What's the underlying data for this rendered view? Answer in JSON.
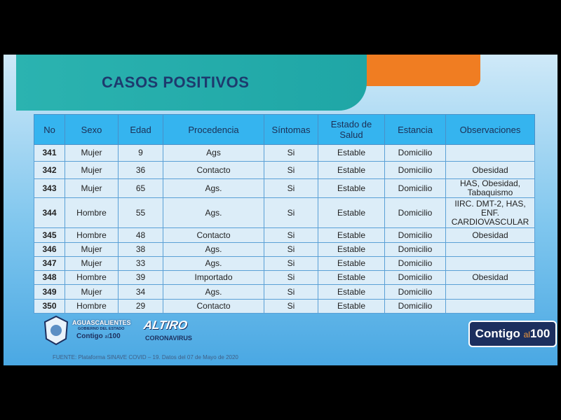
{
  "title": "CASOS POSITIVOS",
  "table": {
    "header": [
      "No",
      "Sexo",
      "Edad",
      "Procedencia",
      "Síntomas",
      "Estado de Salud",
      "Estancia",
      "Observaciones"
    ],
    "rows": [
      [
        "341",
        "Mujer",
        "9",
        "Ags",
        "Si",
        "Estable",
        "Domicilio",
        null
      ],
      [
        "342",
        "Mujer",
        "36",
        "Contacto",
        "Si",
        "Estable",
        "Domicilio",
        "Obesidad"
      ],
      [
        "343",
        "Mujer",
        "65",
        "Ags.",
        "Si",
        "Estable",
        "Domicilio",
        "HAS, Obesidad, Tabaquismo"
      ],
      [
        "344",
        "Hombre",
        "55",
        "Ags.",
        "Si",
        "Estable",
        "Domicilio",
        "IIRC. DMT-2, HAS, ENF. CARDIOVASCULAR"
      ],
      [
        "345",
        "Hombre",
        "48",
        "Contacto",
        "Si",
        "Estable",
        "Domicilio",
        "Obesidad"
      ],
      [
        "346",
        "Mujer",
        "38",
        "Ags.",
        "Si",
        "Estable",
        "Domicilio",
        null
      ],
      [
        "347",
        "Mujer",
        "33",
        "Ags.",
        "Si",
        "Estable",
        "Domicilio",
        null
      ],
      [
        "348",
        "Hombre",
        "39",
        "Importado",
        "Si",
        "Estable",
        "Domicilio",
        "Obesidad"
      ],
      [
        "349",
        "Mujer",
        "34",
        "Ags.",
        "Si",
        "Estable",
        "Domicilio",
        null
      ],
      [
        "350",
        "Hombre",
        "29",
        "Contacto",
        "Si",
        "Estable",
        "Domicilio",
        null
      ]
    ]
  },
  "footer": {
    "logo_state": {
      "name": "AGUASCALIENTES",
      "subtitle": "GOBIERNO DEL ESTADO",
      "slogan": [
        "Contigo",
        "al",
        "100"
      ]
    },
    "logo_campaign": {
      "name": "ALTIRO",
      "subtitle": "CORONAVIRUS"
    },
    "badge": [
      "Contigo",
      "al",
      "100"
    ],
    "source": "FUENTE: Plataforma SINAVE COVID – 19. Datos del 07 de Mayo de 2020"
  }
}
